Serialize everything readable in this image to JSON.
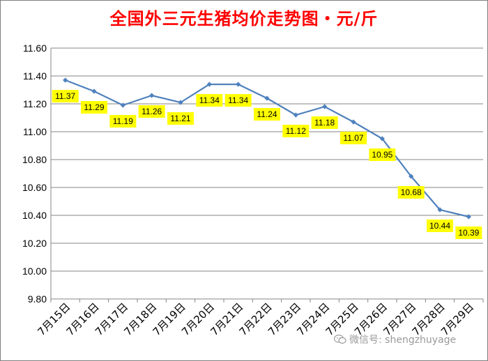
{
  "chart_data": {
    "type": "line",
    "title": "全国外三元生猪均价走势图・元/斤",
    "xlabel": "",
    "ylabel": "",
    "categories": [
      "7月15日",
      "7月16日",
      "7月17日",
      "7月18日",
      "7月19日",
      "7月20日",
      "7月21日",
      "7月22日",
      "7月23日",
      "7月24日",
      "7月25日",
      "7月26日",
      "7月27日",
      "7月28日",
      "7月29日"
    ],
    "series": [
      {
        "values": [
          11.37,
          11.29,
          11.19,
          11.26,
          11.21,
          11.34,
          11.34,
          11.24,
          11.12,
          11.18,
          11.07,
          10.95,
          10.68,
          10.44,
          10.39
        ]
      }
    ],
    "ylim": [
      9.8,
      11.6
    ],
    "yticks": [
      "9.80",
      "10.00",
      "10.20",
      "10.40",
      "10.60",
      "10.80",
      "11.00",
      "11.20",
      "11.40",
      "11.60"
    ],
    "grid": true,
    "legend": "none",
    "line_color": "#4f81bd",
    "label_background": "#ffff00"
  },
  "watermark": {
    "text": "微信号: shengzhuyage",
    "icon": "wechat-icon"
  }
}
